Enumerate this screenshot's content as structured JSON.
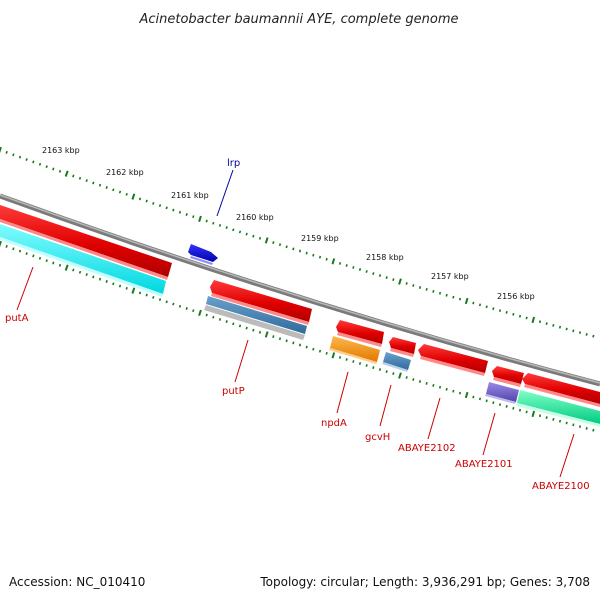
{
  "title": "Acinetobacter baumannii AYE, complete genome",
  "footer": {
    "accession": "Accession: NC_010410",
    "summary": "Topology: circular; Length: 3,936,291 bp; Genes: 3,708"
  },
  "scale_labels": [
    "2163 kbp",
    "2162 kbp",
    "2161 kbp",
    "2160 kbp",
    "2159 kbp",
    "2158 kbp",
    "2157 kbp",
    "2156 kbp"
  ],
  "genes": [
    {
      "name": "lrp",
      "color": "#0000aa"
    },
    {
      "name": "putA",
      "color": "#cc0000"
    },
    {
      "name": "putP",
      "color": "#cc0000"
    },
    {
      "name": "npdA",
      "color": "#cc0000"
    },
    {
      "name": "gcvH",
      "color": "#cc0000"
    },
    {
      "name": "ABAYE2102",
      "color": "#cc0000"
    },
    {
      "name": "ABAYE2101",
      "color": "#cc0000"
    },
    {
      "name": "ABAYE2100",
      "color": "#cc0000"
    }
  ],
  "colors": {
    "backbone": "#7a7a7a",
    "scale_ticks": "#1a7a1a",
    "cds_red": "#ee0000",
    "lrp_blue": "#0000dd",
    "cyan_feature": "#00e5e5",
    "steel_feature": "#4a7fb0",
    "orange_feature": "#ff9900",
    "green_feature": "#00dd88",
    "purple_feature": "#7766cc"
  }
}
